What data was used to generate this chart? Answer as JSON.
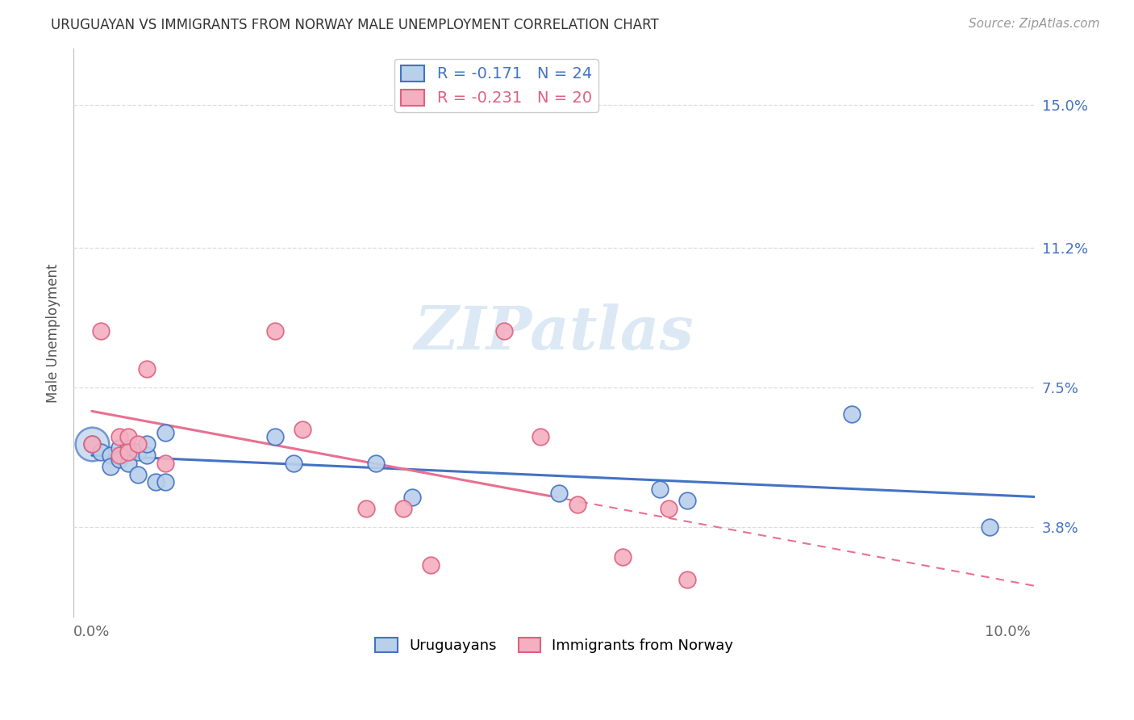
{
  "title": "URUGUAYAN VS IMMIGRANTS FROM NORWAY MALE UNEMPLOYMENT CORRELATION CHART",
  "source": "Source: ZipAtlas.com",
  "ylabel": "Male Unemployment",
  "xlabel": "",
  "xtick_vals": [
    0.0,
    0.02,
    0.04,
    0.06,
    0.08,
    0.1
  ],
  "xtick_labels": [
    "0.0%",
    "",
    "",
    "",
    "",
    "10.0%"
  ],
  "ytick_positions": [
    0.038,
    0.075,
    0.112,
    0.15
  ],
  "ytick_labels": [
    "3.8%",
    "7.5%",
    "11.2%",
    "15.0%"
  ],
  "xlim": [
    -0.002,
    0.103
  ],
  "ylim": [
    0.014,
    0.165
  ],
  "r_uruguayan": -0.171,
  "n_uruguayan": 24,
  "r_norway": -0.231,
  "n_norway": 20,
  "color_uruguayan_fill": "#b8d0ea",
  "color_uruguayan_edge": "#4472c4",
  "color_norway_fill": "#f4b0c0",
  "color_norway_edge": "#e06080",
  "color_line_uruguayan": "#4472c4",
  "color_line_norway": "#e87090",
  "legend_uruguayan": "Uruguayans",
  "legend_norway": "Immigrants from Norway",
  "uruguayan_x": [
    0.0,
    0.001,
    0.002,
    0.002,
    0.003,
    0.003,
    0.004,
    0.004,
    0.005,
    0.005,
    0.006,
    0.006,
    0.007,
    0.008,
    0.008,
    0.02,
    0.022,
    0.031,
    0.035,
    0.051,
    0.062,
    0.065,
    0.083,
    0.098
  ],
  "uruguayan_y": [
    0.06,
    0.058,
    0.057,
    0.054,
    0.059,
    0.056,
    0.059,
    0.055,
    0.058,
    0.052,
    0.057,
    0.06,
    0.05,
    0.05,
    0.063,
    0.062,
    0.055,
    0.055,
    0.046,
    0.047,
    0.048,
    0.045,
    0.068,
    0.038
  ],
  "norway_x": [
    0.0,
    0.001,
    0.003,
    0.003,
    0.004,
    0.004,
    0.005,
    0.006,
    0.008,
    0.02,
    0.023,
    0.03,
    0.034,
    0.037,
    0.045,
    0.049,
    0.053,
    0.058,
    0.063,
    0.065
  ],
  "norway_y": [
    0.06,
    0.09,
    0.062,
    0.057,
    0.062,
    0.058,
    0.06,
    0.08,
    0.055,
    0.09,
    0.064,
    0.043,
    0.043,
    0.028,
    0.09,
    0.062,
    0.044,
    0.03,
    0.043,
    0.024
  ],
  "grid_color": "#dddddd",
  "watermark_color": "#dce9f5",
  "title_fontsize": 12,
  "source_fontsize": 11,
  "tick_fontsize": 13,
  "ylabel_fontsize": 12
}
